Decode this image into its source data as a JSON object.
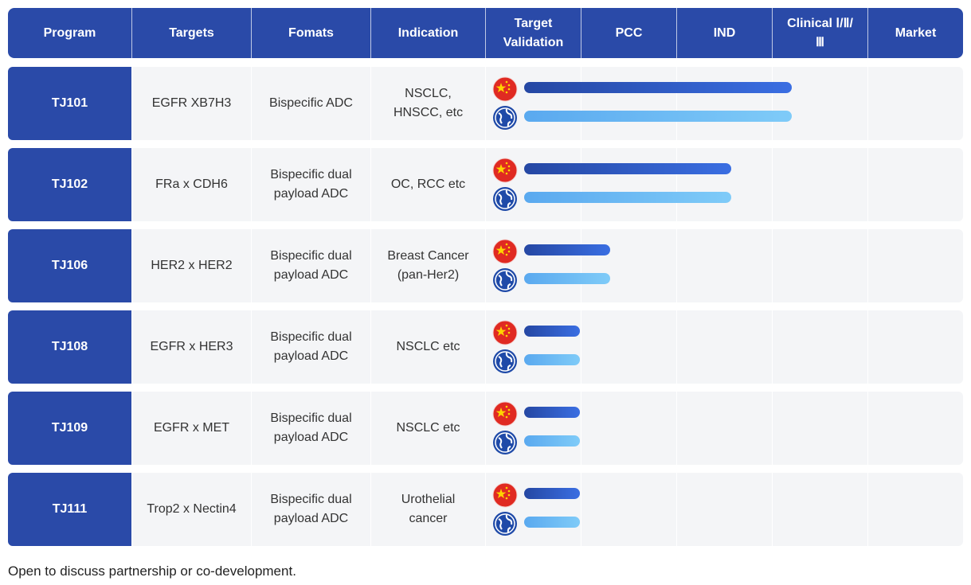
{
  "table": {
    "headers": [
      "Program",
      "Targets",
      "Fomats",
      "Indication",
      "Target Validation",
      "PCC",
      "IND",
      "Clinical Ⅰ/Ⅱ/Ⅲ",
      "Market"
    ],
    "rows": [
      {
        "program": "TJ101",
        "targets": "EGFR XB7H3",
        "format": "Bispecific ADC",
        "indication": "NSCLC, HNSCC, etc",
        "china_progress": 3.2,
        "global_progress": 3.2
      },
      {
        "program": "TJ102",
        "targets": "FRa x CDH6",
        "format": "Bispecific dual payload ADC",
        "indication": "OC, RCC etc",
        "china_progress": 2.57,
        "global_progress": 2.57
      },
      {
        "program": "TJ106",
        "targets": "HER2 x HER2",
        "format": "Bispecific dual payload ADC",
        "indication": "Breast Cancer (pan-Her2)",
        "china_progress": 1.3,
        "global_progress": 1.3
      },
      {
        "program": "TJ108",
        "targets": "EGFR x HER3",
        "format": "Bispecific dual payload ADC",
        "indication": "NSCLC etc",
        "china_progress": 0.98,
        "global_progress": 0.98
      },
      {
        "program": "TJ109",
        "targets": "EGFR x MET",
        "format": "Bispecific dual payload ADC",
        "indication": "NSCLC etc",
        "china_progress": 0.98,
        "global_progress": 0.98
      },
      {
        "program": "TJ111",
        "targets": "Trop2 x Nectin4",
        "format": "Bispecific dual payload ADC",
        "indication": "Urothelial cancer",
        "china_progress": 0.98,
        "global_progress": 0.98
      }
    ]
  },
  "footer": "Open to discuss partnership or co-development."
}
